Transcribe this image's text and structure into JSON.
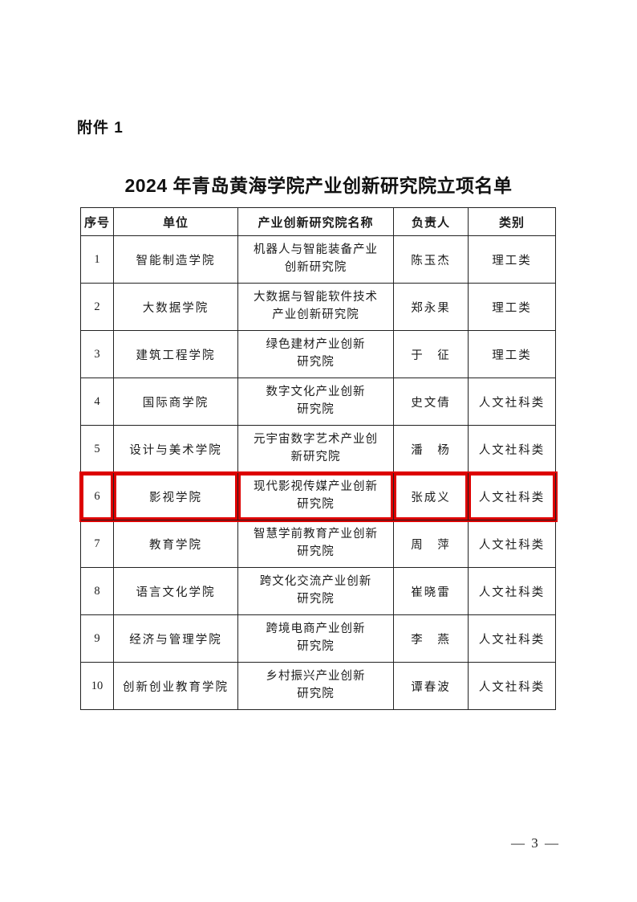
{
  "page": {
    "attachment_label": "附件 1",
    "title": "2024 年青岛黄海学院产业创新研究院立项名单",
    "page_number": "— 3 —"
  },
  "table": {
    "headers": [
      "序号",
      "单位",
      "产业创新研究院名称",
      "负责人",
      "类别"
    ],
    "highlight": {
      "row_index": 5,
      "color": "#dd0000"
    },
    "rows": [
      {
        "no": "1",
        "unit": "智能制造学院",
        "institute_lines": [
          "机器人与智能装备产业",
          "创新研究院"
        ],
        "leader": "陈玉杰",
        "category": "理工类"
      },
      {
        "no": "2",
        "unit": "大数据学院",
        "institute_lines": [
          "大数据与智能软件技术",
          "产业创新研究院"
        ],
        "leader": "郑永果",
        "category": "理工类"
      },
      {
        "no": "3",
        "unit": "建筑工程学院",
        "institute_lines": [
          "绿色建材产业创新",
          "研究院"
        ],
        "leader": "于　征",
        "category": "理工类"
      },
      {
        "no": "4",
        "unit": "国际商学院",
        "institute_lines": [
          "数字文化产业创新",
          "研究院"
        ],
        "leader": "史文倩",
        "category": "人文社科类"
      },
      {
        "no": "5",
        "unit": "设计与美术学院",
        "institute_lines": [
          "元宇宙数字艺术产业创",
          "新研究院"
        ],
        "leader": "潘　杨",
        "category": "人文社科类"
      },
      {
        "no": "6",
        "unit": "影视学院",
        "institute_lines": [
          "现代影视传媒产业创新",
          "研究院"
        ],
        "leader": "张成义",
        "category": "人文社科类"
      },
      {
        "no": "7",
        "unit": "教育学院",
        "institute_lines": [
          "智慧学前教育产业创新",
          "研究院"
        ],
        "leader": "周　萍",
        "category": "人文社科类"
      },
      {
        "no": "8",
        "unit": "语言文化学院",
        "institute_lines": [
          "跨文化交流产业创新",
          "研究院"
        ],
        "leader": "崔晓雷",
        "category": "人文社科类"
      },
      {
        "no": "9",
        "unit": "经济与管理学院",
        "institute_lines": [
          "跨境电商产业创新",
          "研究院"
        ],
        "leader": "李　燕",
        "category": "人文社科类"
      },
      {
        "no": "10",
        "unit": "创新创业教育学院",
        "institute_lines": [
          "乡村振兴产业创新",
          "研究院"
        ],
        "leader": "谭春波",
        "category": "人文社科类"
      }
    ]
  }
}
